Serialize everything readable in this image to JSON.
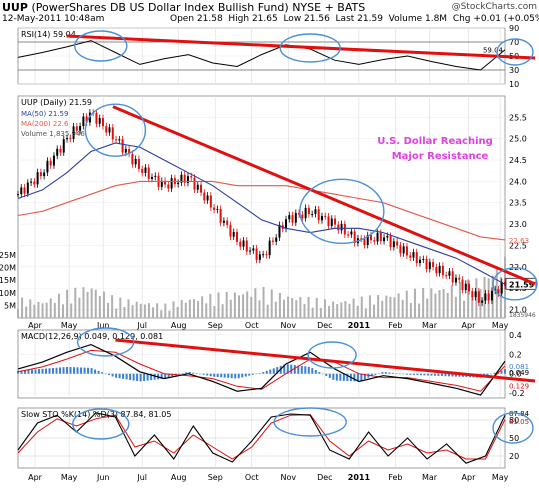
{
  "header": {
    "symbol": "UUP",
    "name": "(PowerShares DB US Dollar Index Bullish Fund)",
    "exchange": "NYSE + BATS",
    "datetime": "12-May-2011 10:48am",
    "open": "Open 21.58",
    "high": "High 21.65",
    "low": "Low 21.56",
    "last": "Last 21.59",
    "volume": "Volume 1.8M",
    "chg": "Chg +0.01 (+0.05%)",
    "credit": "@StockCharts.com"
  },
  "annotation": {
    "line1": "U.S. Dollar Reaching",
    "line2": "Major Resistance",
    "color": "#e040e0"
  },
  "colors": {
    "trendline": "#e01010",
    "circle": "#4a90d9",
    "ma50": "#2a3fa0",
    "ma200": "#e05a4a",
    "up": "#000000",
    "down": "#e01010",
    "volume": "#b0b0b0",
    "macd_hist": "#3a7fd0",
    "sto_k": "#000000",
    "sto_d": "#e01010"
  },
  "chart_data": [
    {
      "type": "line",
      "panel": "rsi",
      "legend": "RSI(14) 59.04",
      "last_value": "59.04",
      "ylim": [
        10,
        90
      ],
      "yticks": [
        "90",
        "70",
        "50",
        "30",
        "10"
      ],
      "levels": [
        70,
        30
      ],
      "series": [
        {
          "name": "RSI(14)",
          "x": [
            0,
            0.05,
            0.1,
            0.15,
            0.2,
            0.25,
            0.3,
            0.35,
            0.4,
            0.45,
            0.5,
            0.55,
            0.6,
            0.65,
            0.7,
            0.75,
            0.8,
            0.85,
            0.9,
            0.95,
            1
          ],
          "values": [
            48,
            55,
            63,
            72,
            55,
            38,
            46,
            52,
            40,
            35,
            52,
            66,
            60,
            44,
            38,
            45,
            50,
            42,
            35,
            30,
            59
          ]
        }
      ]
    },
    {
      "type": "candlestick",
      "panel": "price",
      "legend_symbol": "UUP (Daily) 21.59",
      "legend_ma50": "MA(50) 21.59",
      "legend_ma200": "MA(200) 22.6",
      "legend_volume": "Volume 1,835,946",
      "last_price": "21.59",
      "ma200_label": "22.63",
      "volume_label": "1835946",
      "ylim": [
        20.8,
        26.0
      ],
      "yticks": [
        "25.5",
        "25.0",
        "24.5",
        "24.0",
        "23.5",
        "23.0",
        "22.5",
        "22.0",
        "21.5",
        "21.0"
      ],
      "volume_ticks": [
        "25M",
        "20M",
        "15M",
        "10M",
        "5M"
      ],
      "volume_max": 27,
      "x": [
        0,
        0.05,
        0.1,
        0.15,
        0.2,
        0.25,
        0.3,
        0.35,
        0.4,
        0.45,
        0.5,
        0.55,
        0.6,
        0.65,
        0.7,
        0.75,
        0.8,
        0.85,
        0.9,
        0.95,
        1
      ],
      "close": [
        23.7,
        24.2,
        25.0,
        25.6,
        25.0,
        24.3,
        23.9,
        24.1,
        23.4,
        22.6,
        22.2,
        23.1,
        23.3,
        23.0,
        22.6,
        22.7,
        22.3,
        22.0,
        21.7,
        21.2,
        21.59
      ],
      "ma50": [
        23.6,
        23.8,
        24.2,
        24.7,
        24.9,
        24.8,
        24.5,
        24.2,
        23.9,
        23.5,
        23.1,
        22.9,
        22.8,
        22.9,
        22.9,
        22.8,
        22.6,
        22.4,
        22.2,
        21.9,
        21.59
      ],
      "ma200": [
        23.2,
        23.3,
        23.5,
        23.7,
        23.9,
        24.0,
        24.0,
        24.0,
        24.0,
        23.9,
        23.9,
        23.9,
        23.8,
        23.7,
        23.6,
        23.5,
        23.3,
        23.1,
        22.9,
        22.7,
        22.63
      ],
      "volume": [
        6,
        5,
        8,
        10,
        6,
        5,
        4,
        6,
        7,
        8,
        9,
        7,
        6,
        5,
        6,
        7,
        8,
        9,
        10,
        12,
        18
      ]
    },
    {
      "type": "line",
      "panel": "macd",
      "legend": "MACD(12,26,9) 0.049, 0.129, 0.081",
      "values_labels": [
        "0.081",
        "0.049",
        "0.129"
      ],
      "ylim": [
        -0.25,
        0.45
      ],
      "yticks": [
        "0.4",
        "0.2",
        "0.0",
        "-0.2"
      ],
      "series": [
        {
          "name": "MACD",
          "x": [
            0,
            0.05,
            0.1,
            0.15,
            0.2,
            0.25,
            0.3,
            0.35,
            0.4,
            0.45,
            0.5,
            0.55,
            0.6,
            0.65,
            0.7,
            0.75,
            0.8,
            0.85,
            0.9,
            0.95,
            1
          ],
          "values": [
            0.05,
            0.12,
            0.22,
            0.3,
            0.18,
            0.02,
            -0.05,
            0.0,
            -0.08,
            -0.18,
            -0.15,
            0.1,
            0.22,
            0.05,
            -0.08,
            -0.02,
            -0.05,
            -0.1,
            -0.15,
            -0.22,
            0.129
          ]
        },
        {
          "name": "Signal",
          "x": [
            0,
            0.05,
            0.1,
            0.15,
            0.2,
            0.25,
            0.3,
            0.35,
            0.4,
            0.45,
            0.5,
            0.55,
            0.6,
            0.65,
            0.7,
            0.75,
            0.8,
            0.85,
            0.9,
            0.95,
            1
          ],
          "values": [
            0.02,
            0.07,
            0.15,
            0.24,
            0.22,
            0.1,
            0.0,
            -0.02,
            -0.05,
            -0.13,
            -0.16,
            0.0,
            0.15,
            0.12,
            0.0,
            -0.04,
            -0.04,
            -0.08,
            -0.12,
            -0.18,
            0.081
          ]
        }
      ]
    },
    {
      "type": "line",
      "panel": "sto",
      "legend": "Slow STO %K(14) %D(3) 87.84, 81.05",
      "values_labels": [
        "87.84",
        "81.05"
      ],
      "ylim": [
        0,
        100
      ],
      "yticks": [
        "80",
        "50",
        "20"
      ],
      "levels": [
        80,
        20
      ],
      "series": [
        {
          "name": "%K(14)",
          "x": [
            0,
            0.04,
            0.08,
            0.12,
            0.16,
            0.2,
            0.24,
            0.28,
            0.32,
            0.36,
            0.4,
            0.44,
            0.48,
            0.52,
            0.56,
            0.6,
            0.64,
            0.68,
            0.72,
            0.76,
            0.8,
            0.84,
            0.88,
            0.92,
            0.96,
            1
          ],
          "values": [
            30,
            75,
            88,
            60,
            92,
            85,
            20,
            55,
            15,
            70,
            25,
            10,
            45,
            85,
            90,
            88,
            30,
            15,
            60,
            20,
            50,
            15,
            40,
            8,
            20,
            87.84
          ]
        },
        {
          "name": "%D(3)",
          "x": [
            0,
            0.04,
            0.08,
            0.12,
            0.16,
            0.2,
            0.24,
            0.28,
            0.32,
            0.36,
            0.4,
            0.44,
            0.48,
            0.52,
            0.56,
            0.6,
            0.64,
            0.68,
            0.72,
            0.76,
            0.8,
            0.84,
            0.88,
            0.92,
            0.96,
            1
          ],
          "values": [
            25,
            60,
            82,
            70,
            82,
            88,
            35,
            45,
            25,
            55,
            35,
            15,
            35,
            75,
            88,
            89,
            45,
            20,
            45,
            30,
            40,
            25,
            30,
            15,
            15,
            81.05
          ]
        }
      ]
    }
  ],
  "x_axis": {
    "labels": [
      "Apr",
      "May",
      "Jun",
      "Jul",
      "Aug",
      "Sep",
      "Oct",
      "Nov",
      "Dec",
      "2011",
      "Feb",
      "Mar",
      "Apr",
      "May"
    ],
    "positions": [
      0.035,
      0.105,
      0.175,
      0.255,
      0.33,
      0.405,
      0.48,
      0.555,
      0.63,
      0.7,
      0.775,
      0.845,
      0.925,
      0.99
    ]
  }
}
